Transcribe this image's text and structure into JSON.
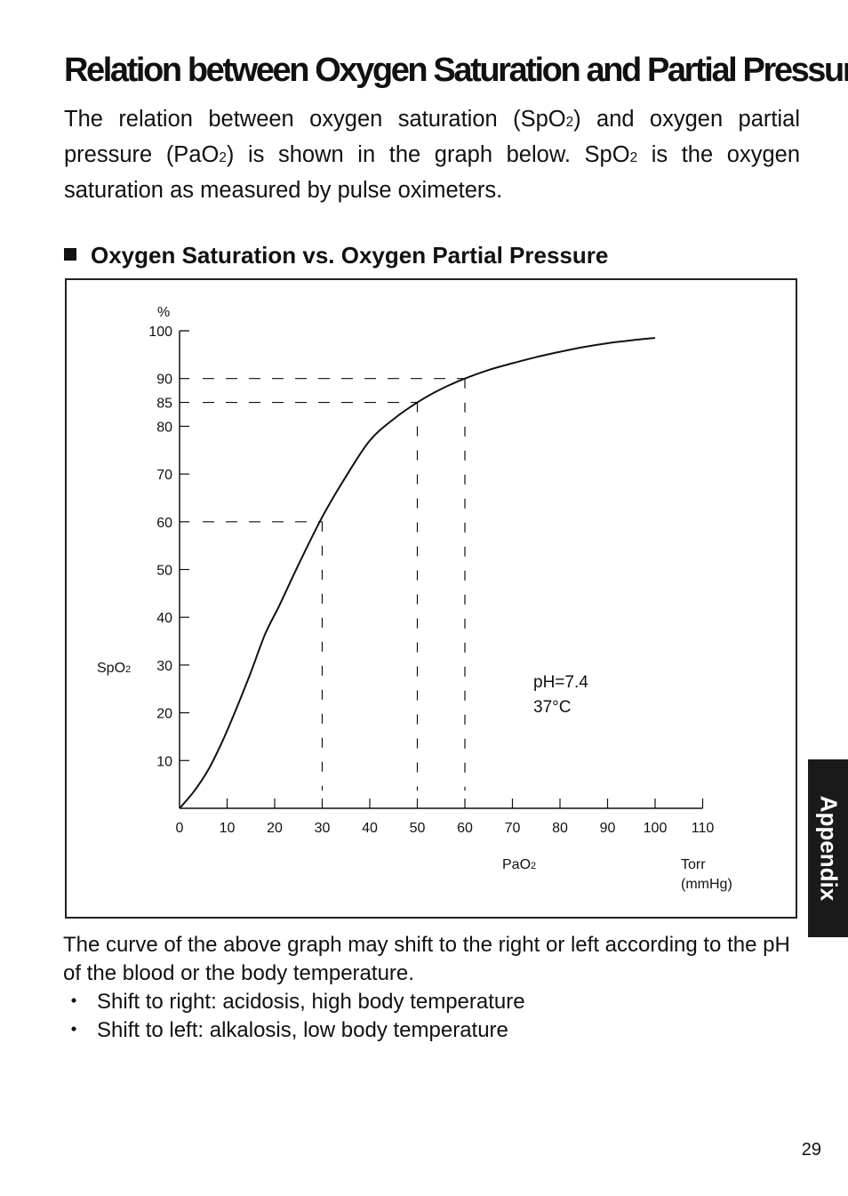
{
  "page": {
    "title": "Relation between Oxygen Saturation and Partial Pressure",
    "intro": {
      "p1": "The relation between oxygen saturation (SpO",
      "sub1": "2",
      "p2": ") and oxygen partial pressure (PaO",
      "sub2": "2",
      "p3": ") is shown in the graph below. SpO",
      "sub3": "2",
      "p4": " is the oxygen saturation as measured by pulse oximeters."
    },
    "section_heading": "Oxygen Saturation vs. Oxygen Partial Pressure",
    "footer": {
      "text": "The curve of the above graph may shift to the right or left according to the pH of the blood or the body temperature.",
      "bullet_symbol": "・",
      "bullets": [
        "Shift to right: acidosis, high body temperature",
        "Shift to left: alkalosis, low body temperature"
      ]
    },
    "side_tab": "Appendix",
    "page_number": "29"
  },
  "chart_data": {
    "type": "line",
    "title": "Oxygen Saturation vs. Oxygen Partial Pressure",
    "xlabel": "PaO",
    "xlabel_sub": "2",
    "xunit_line1": "Torr",
    "xunit_line2": "(mmHg)",
    "ylabel": "SpO",
    "ylabel_sub": "2",
    "yunit": "%",
    "xlim": [
      0,
      110
    ],
    "ylim": [
      0,
      100
    ],
    "x_ticks": [
      0,
      10,
      20,
      30,
      40,
      50,
      60,
      70,
      80,
      90,
      100,
      110
    ],
    "y_ticks": [
      10,
      20,
      30,
      40,
      50,
      60,
      70,
      80,
      85,
      90,
      100
    ],
    "grid": false,
    "annotation_lines": [
      "pH=7.4",
      "37°C"
    ],
    "reference_points": [
      {
        "x": 30,
        "y": 60
      },
      {
        "x": 50,
        "y": 85
      },
      {
        "x": 60,
        "y": 90
      }
    ],
    "series": [
      {
        "x": [
          0,
          3,
          6,
          9,
          12,
          15,
          18,
          21,
          25,
          30,
          35,
          40,
          45,
          50,
          55,
          60,
          65,
          70,
          75,
          80,
          85,
          90,
          95,
          100
        ],
        "y": [
          0,
          3.5,
          8,
          14,
          21,
          28.5,
          36.5,
          42.5,
          51,
          61,
          69.5,
          77,
          81.5,
          85,
          87.8,
          90,
          91.8,
          93.2,
          94.5,
          95.6,
          96.6,
          97.4,
          98,
          98.5
        ]
      }
    ]
  }
}
